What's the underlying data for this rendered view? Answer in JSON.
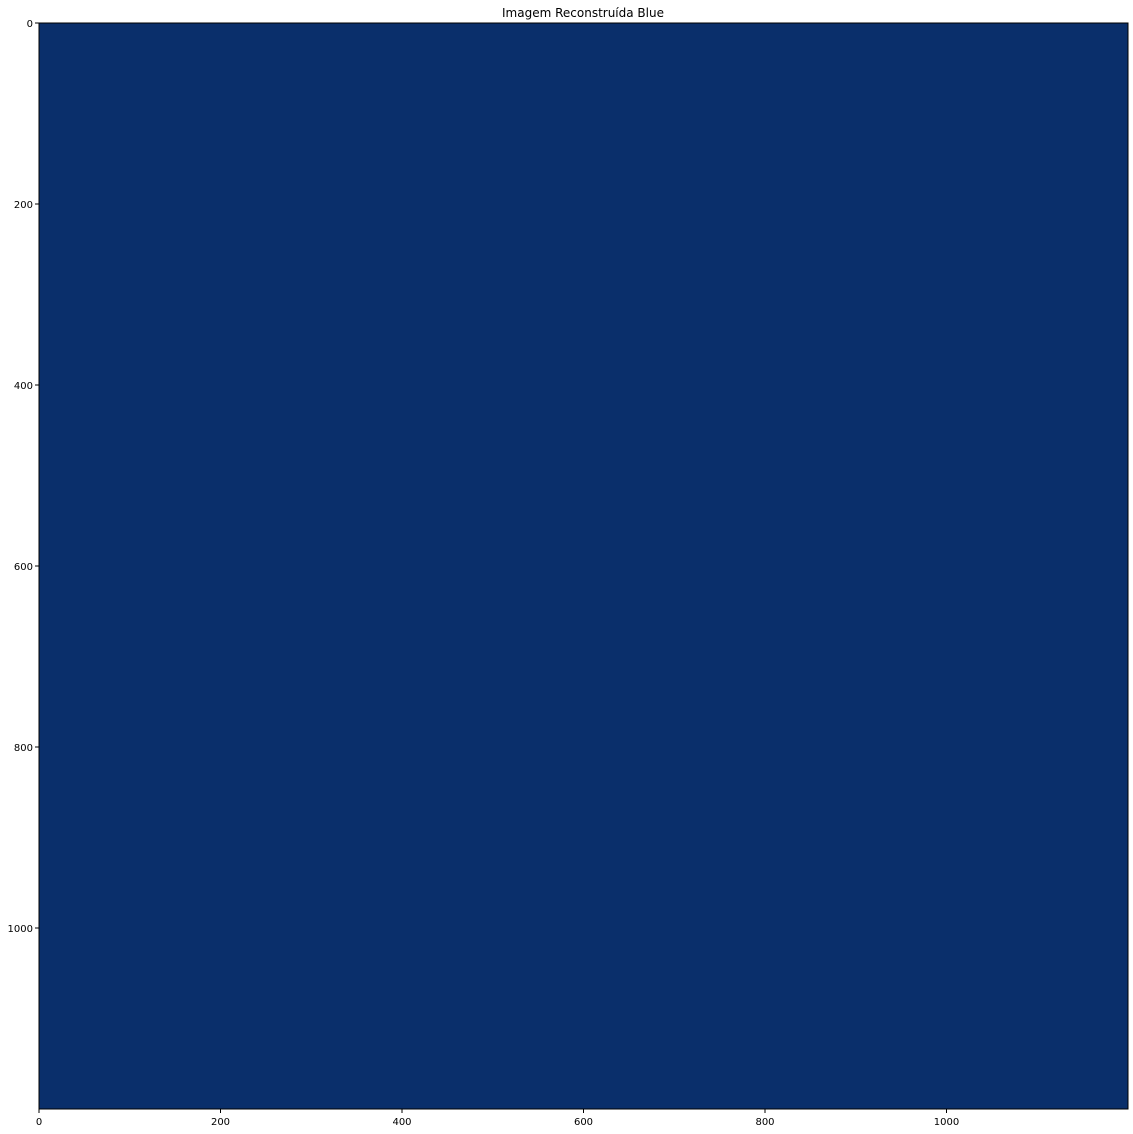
{
  "chart_data": {
    "type": "heatmap",
    "title": "Imagem Reconstruída Blue",
    "xlabel": "",
    "ylabel": "",
    "xlim": [
      0,
      1200
    ],
    "ylim": [
      0,
      1200
    ],
    "y_inverted": true,
    "x_ticks": [
      0,
      200,
      400,
      600,
      800,
      1000
    ],
    "y_ticks": [
      0,
      200,
      400,
      600,
      800,
      1000
    ],
    "fill_color": "#0a2f6b",
    "grid": false,
    "legend": "none"
  }
}
